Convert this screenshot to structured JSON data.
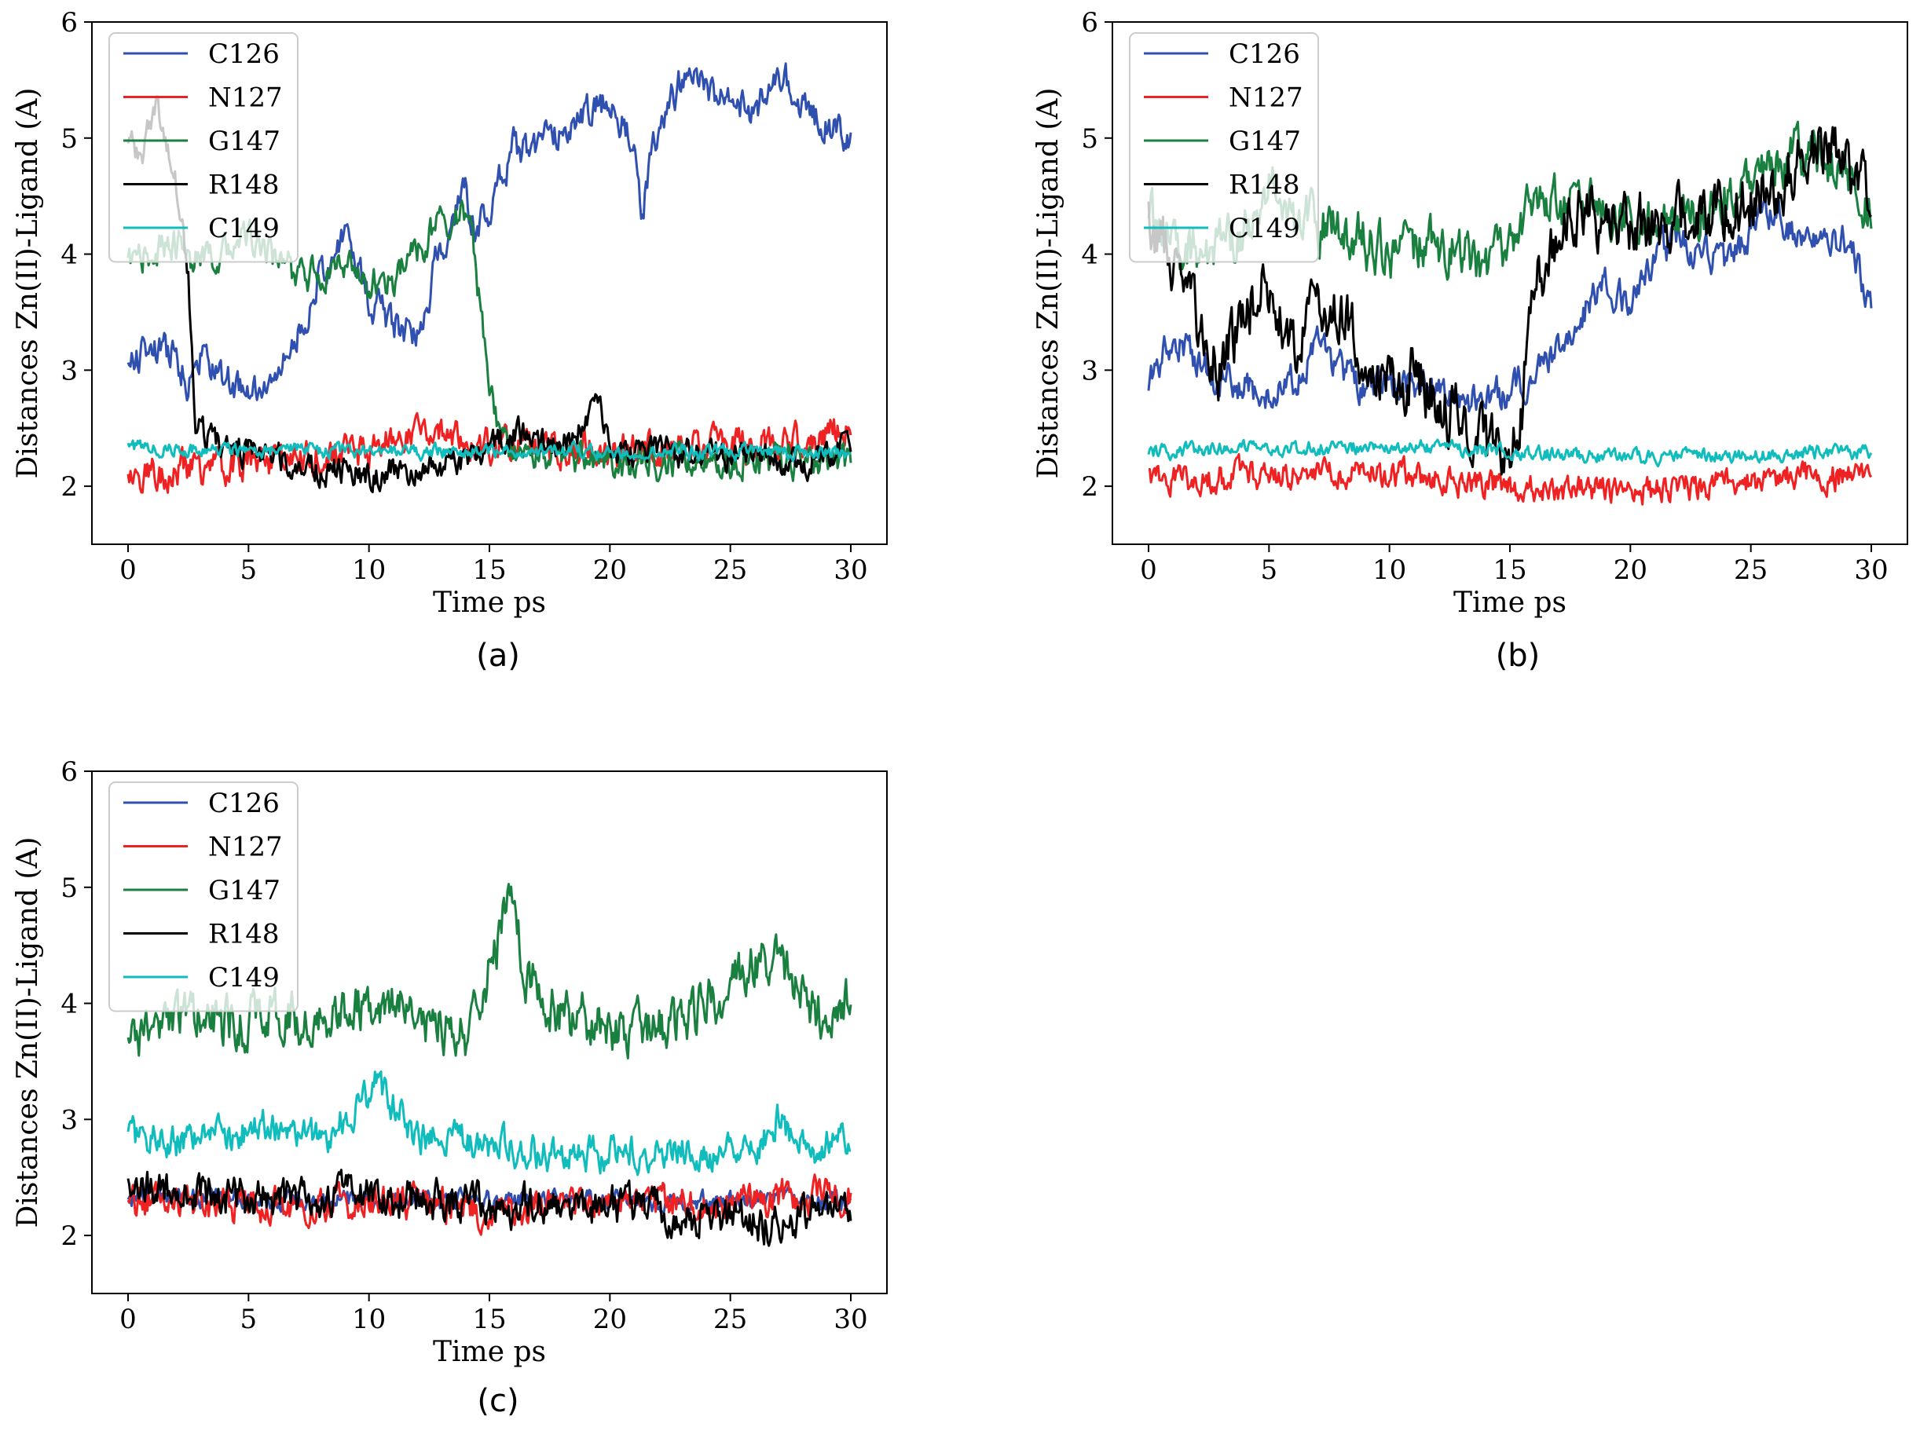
{
  "figure": {
    "captions": [
      "(a)",
      "(b)",
      "(c)"
    ]
  },
  "chart_data": [
    {
      "panel": "(a)",
      "type": "line",
      "xlabel": "Time ps",
      "ylabel": "Distances Zn(II)-Ligand (A)",
      "xlim": [
        -1.5,
        31.5
      ],
      "ylim": [
        1.5,
        6
      ],
      "xticks": [
        0,
        5,
        10,
        15,
        20,
        25,
        30
      ],
      "yticks": [
        2,
        3,
        4,
        5,
        6
      ],
      "legend_position": "top-left",
      "series": [
        {
          "name": "C126",
          "color": "#3050b0",
          "noise": 0.12,
          "points": [
            [
              0,
              3.05
            ],
            [
              1,
              3.2
            ],
            [
              2,
              3.1
            ],
            [
              2.5,
              2.9
            ],
            [
              3,
              3.15
            ],
            [
              4,
              2.9
            ],
            [
              5,
              2.8
            ],
            [
              6,
              2.85
            ],
            [
              7,
              3.3
            ],
            [
              8,
              3.8
            ],
            [
              9,
              4.2
            ],
            [
              10,
              3.6
            ],
            [
              11,
              3.4
            ],
            [
              12,
              3.3
            ],
            [
              13,
              4.1
            ],
            [
              14,
              4.5
            ],
            [
              14.5,
              4.2
            ],
            [
              15,
              4.4
            ],
            [
              16,
              4.9
            ],
            [
              17,
              4.9
            ],
            [
              18,
              5.1
            ],
            [
              19,
              5.2
            ],
            [
              20,
              5.3
            ],
            [
              21,
              5.0
            ],
            [
              21.3,
              4.3
            ],
            [
              22,
              5.1
            ],
            [
              23,
              5.5
            ],
            [
              24,
              5.4
            ],
            [
              25,
              5.4
            ],
            [
              26,
              5.2
            ],
            [
              27,
              5.6
            ],
            [
              28,
              5.3
            ],
            [
              29,
              5.1
            ],
            [
              30,
              5.0
            ]
          ]
        },
        {
          "name": "N127",
          "color": "#ee2222",
          "noise": 0.12,
          "points": [
            [
              0,
              2.1
            ],
            [
              5,
              2.2
            ],
            [
              10,
              2.3
            ],
            [
              12,
              2.5
            ],
            [
              15,
              2.35
            ],
            [
              20,
              2.3
            ],
            [
              25,
              2.35
            ],
            [
              28,
              2.4
            ],
            [
              30,
              2.5
            ]
          ]
        },
        {
          "name": "G147",
          "color": "#1a8040",
          "noise": 0.12,
          "points": [
            [
              0,
              3.9
            ],
            [
              2,
              4.1
            ],
            [
              3,
              3.9
            ],
            [
              5,
              4.15
            ],
            [
              7,
              3.8
            ],
            [
              9,
              3.9
            ],
            [
              10,
              3.75
            ],
            [
              11,
              3.8
            ],
            [
              12,
              4.0
            ],
            [
              13,
              4.3
            ],
            [
              14,
              4.4
            ],
            [
              14.3,
              4.1
            ],
            [
              15,
              2.8
            ],
            [
              15.5,
              2.35
            ],
            [
              20,
              2.2
            ],
            [
              25,
              2.25
            ],
            [
              30,
              2.2
            ]
          ]
        },
        {
          "name": "R148",
          "color": "#000000",
          "noise": 0.1,
          "points": [
            [
              0,
              5.0
            ],
            [
              0.5,
              4.8
            ],
            [
              1.2,
              5.3
            ],
            [
              2,
              4.6
            ],
            [
              2.5,
              3.8
            ],
            [
              2.8,
              2.5
            ],
            [
              4,
              2.35
            ],
            [
              6,
              2.25
            ],
            [
              8,
              2.15
            ],
            [
              10,
              2.1
            ],
            [
              12,
              2.15
            ],
            [
              14,
              2.2
            ],
            [
              16,
              2.45
            ],
            [
              18,
              2.35
            ],
            [
              19.5,
              2.7
            ],
            [
              20,
              2.3
            ],
            [
              22,
              2.3
            ],
            [
              25,
              2.25
            ],
            [
              28,
              2.2
            ],
            [
              30,
              2.35
            ]
          ]
        },
        {
          "name": "C149",
          "color": "#10bcbc",
          "noise": 0.05,
          "points": [
            [
              0,
              2.33
            ],
            [
              10,
              2.3
            ],
            [
              20,
              2.3
            ],
            [
              30,
              2.3
            ]
          ]
        }
      ]
    },
    {
      "panel": "(b)",
      "type": "line",
      "xlabel": "Time ps",
      "ylabel": "Distances Zn(II)-Ligand (A)",
      "xlim": [
        -1.5,
        31.5
      ],
      "ylim": [
        1.5,
        6
      ],
      "xticks": [
        0,
        5,
        10,
        15,
        20,
        25,
        30
      ],
      "yticks": [
        2,
        3,
        4,
        5,
        6
      ],
      "legend_position": "top-left",
      "series": [
        {
          "name": "C126",
          "color": "#3050b0",
          "noise": 0.12,
          "points": [
            [
              0,
              2.9
            ],
            [
              1,
              3.3
            ],
            [
              2,
              3.1
            ],
            [
              3,
              2.9
            ],
            [
              5,
              2.8
            ],
            [
              6,
              2.9
            ],
            [
              7,
              3.2
            ],
            [
              9,
              2.8
            ],
            [
              11,
              2.9
            ],
            [
              13,
              2.7
            ],
            [
              15,
              2.8
            ],
            [
              16,
              3.0
            ],
            [
              17,
              3.2
            ],
            [
              18,
              3.5
            ],
            [
              19,
              3.8
            ],
            [
              20,
              3.5
            ],
            [
              21,
              4.0
            ],
            [
              22,
              4.1
            ],
            [
              23,
              4.0
            ],
            [
              24,
              3.9
            ],
            [
              25,
              4.2
            ],
            [
              26,
              4.4
            ],
            [
              27,
              4.1
            ],
            [
              28,
              4.2
            ],
            [
              29,
              4.1
            ],
            [
              30,
              3.6
            ]
          ]
        },
        {
          "name": "N127",
          "color": "#ee2222",
          "noise": 0.1,
          "points": [
            [
              0,
              2.05
            ],
            [
              5,
              2.1
            ],
            [
              10,
              2.1
            ],
            [
              15,
              2.0
            ],
            [
              20,
              1.95
            ],
            [
              25,
              2.05
            ],
            [
              30,
              2.1
            ]
          ]
        },
        {
          "name": "G147",
          "color": "#1a8040",
          "noise": 0.18,
          "points": [
            [
              0,
              4.3
            ],
            [
              2,
              4.0
            ],
            [
              4,
              4.2
            ],
            [
              5,
              4.6
            ],
            [
              6,
              4.3
            ],
            [
              8,
              4.2
            ],
            [
              10,
              4.0
            ],
            [
              12,
              4.1
            ],
            [
              14,
              3.9
            ],
            [
              16,
              4.4
            ],
            [
              18,
              4.4
            ],
            [
              20,
              4.3
            ],
            [
              22,
              4.2
            ],
            [
              24,
              4.5
            ],
            [
              26,
              4.8
            ],
            [
              28,
              4.9
            ],
            [
              30,
              4.4
            ]
          ]
        },
        {
          "name": "R148",
          "color": "#000000",
          "noise": 0.22,
          "points": [
            [
              0,
              4.3
            ],
            [
              1,
              3.9
            ],
            [
              2,
              3.4
            ],
            [
              3,
              3.0
            ],
            [
              4,
              3.5
            ],
            [
              5,
              3.8
            ],
            [
              6,
              3.1
            ],
            [
              7,
              3.6
            ],
            [
              8,
              3.5
            ],
            [
              9,
              3.0
            ],
            [
              10,
              2.8
            ],
            [
              11,
              3.0
            ],
            [
              12,
              2.7
            ],
            [
              13,
              2.6
            ],
            [
              14,
              2.3
            ],
            [
              15,
              2.3
            ],
            [
              15.5,
              2.7
            ],
            [
              16,
              3.7
            ],
            [
              17,
              4.1
            ],
            [
              18,
              4.4
            ],
            [
              19,
              4.3
            ],
            [
              20,
              4.2
            ],
            [
              22,
              4.3
            ],
            [
              24,
              4.4
            ],
            [
              26,
              4.6
            ],
            [
              28,
              5.0
            ],
            [
              29,
              4.7
            ],
            [
              30,
              4.6
            ]
          ]
        },
        {
          "name": "C149",
          "color": "#10bcbc",
          "noise": 0.05,
          "points": [
            [
              0,
              2.3
            ],
            [
              10,
              2.35
            ],
            [
              15,
              2.3
            ],
            [
              20,
              2.25
            ],
            [
              30,
              2.3
            ]
          ]
        }
      ]
    },
    {
      "panel": "(c)",
      "type": "line",
      "xlabel": "Time ps",
      "ylabel": "Distances Zn(II)-Ligand (A)",
      "xlim": [
        -1.5,
        31.5
      ],
      "ylim": [
        1.5,
        6
      ],
      "xticks": [
        0,
        5,
        10,
        15,
        20,
        25,
        30
      ],
      "yticks": [
        2,
        3,
        4,
        5,
        6
      ],
      "legend_position": "top-left",
      "series": [
        {
          "name": "C126",
          "color": "#3050b0",
          "noise": 0.07,
          "points": [
            [
              0,
              2.35
            ],
            [
              10,
              2.3
            ],
            [
              20,
              2.3
            ],
            [
              30,
              2.3
            ]
          ]
        },
        {
          "name": "N127",
          "color": "#ee2222",
          "noise": 0.12,
          "points": [
            [
              0,
              2.3
            ],
            [
              5,
              2.25
            ],
            [
              10,
              2.3
            ],
            [
              15,
              2.2
            ],
            [
              20,
              2.3
            ],
            [
              25,
              2.3
            ],
            [
              30,
              2.35
            ]
          ]
        },
        {
          "name": "G147",
          "color": "#1a8040",
          "noise": 0.18,
          "points": [
            [
              0,
              3.7
            ],
            [
              2,
              3.9
            ],
            [
              4,
              3.8
            ],
            [
              6,
              3.9
            ],
            [
              8,
              3.8
            ],
            [
              10,
              4.0
            ],
            [
              12,
              3.9
            ],
            [
              14,
              3.7
            ],
            [
              15.5,
              4.6
            ],
            [
              15.8,
              5.0
            ],
            [
              16.5,
              4.3
            ],
            [
              18,
              3.9
            ],
            [
              20,
              3.8
            ],
            [
              22,
              3.8
            ],
            [
              24,
              4.0
            ],
            [
              26,
              4.3
            ],
            [
              27,
              4.4
            ],
            [
              28,
              4.1
            ],
            [
              29,
              3.8
            ],
            [
              30,
              4.0
            ]
          ]
        },
        {
          "name": "R148",
          "color": "#000000",
          "noise": 0.14,
          "points": [
            [
              0,
              2.4
            ],
            [
              5,
              2.3
            ],
            [
              10,
              2.35
            ],
            [
              15,
              2.25
            ],
            [
              20,
              2.25
            ],
            [
              25,
              2.15
            ],
            [
              27,
              2.1
            ],
            [
              30,
              2.25
            ]
          ]
        },
        {
          "name": "C149",
          "color": "#10bcbc",
          "noise": 0.12,
          "points": [
            [
              0,
              2.85
            ],
            [
              3,
              2.8
            ],
            [
              6,
              2.95
            ],
            [
              8,
              2.8
            ],
            [
              10.3,
              3.3
            ],
            [
              12,
              2.85
            ],
            [
              14,
              2.8
            ],
            [
              16,
              2.75
            ],
            [
              18,
              2.7
            ],
            [
              20,
              2.7
            ],
            [
              22,
              2.75
            ],
            [
              24,
              2.7
            ],
            [
              26,
              2.7
            ],
            [
              27,
              3.0
            ],
            [
              28,
              2.75
            ],
            [
              30,
              2.8
            ]
          ]
        }
      ]
    }
  ]
}
